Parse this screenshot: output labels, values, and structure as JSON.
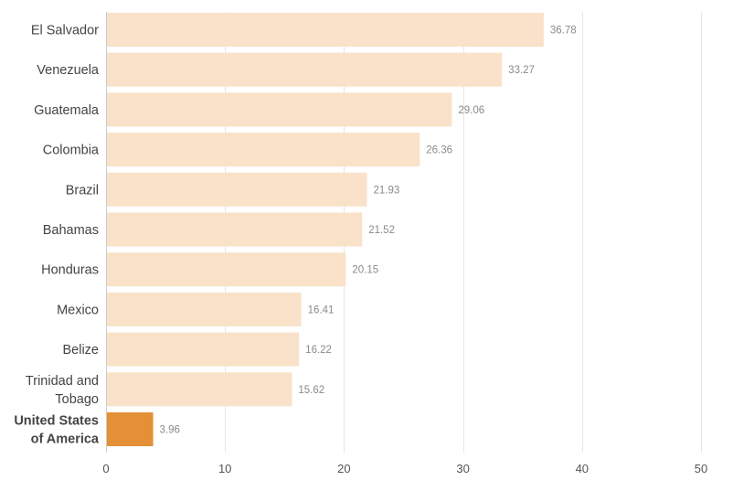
{
  "chart_data": {
    "type": "bar",
    "orientation": "horizontal",
    "categories": [
      [
        "El Salvador"
      ],
      [
        "Venezuela"
      ],
      [
        "Guatemala"
      ],
      [
        "Colombia"
      ],
      [
        "Brazil"
      ],
      [
        "Bahamas"
      ],
      [
        "Honduras"
      ],
      [
        "Mexico"
      ],
      [
        "Belize"
      ],
      [
        "Trinidad and",
        "Tobago"
      ],
      [
        "United States",
        "of America"
      ]
    ],
    "values": [
      36.78,
      33.27,
      29.06,
      26.36,
      21.93,
      21.52,
      20.15,
      16.41,
      16.22,
      15.62,
      3.96
    ],
    "value_labels": [
      "36.78",
      "33.27",
      "29.06",
      "26.36",
      "21.93",
      "21.52",
      "20.15",
      "16.41",
      "16.22",
      "15.62",
      "3.96"
    ],
    "highlight_index": 10,
    "xlim": [
      0,
      50
    ],
    "xticks": [
      0,
      10,
      20,
      30,
      40,
      50
    ],
    "grid": true,
    "colors": {
      "bar": "#f9e2c9",
      "highlight": "#e39036"
    },
    "title": "",
    "xlabel": "",
    "ylabel": ""
  }
}
